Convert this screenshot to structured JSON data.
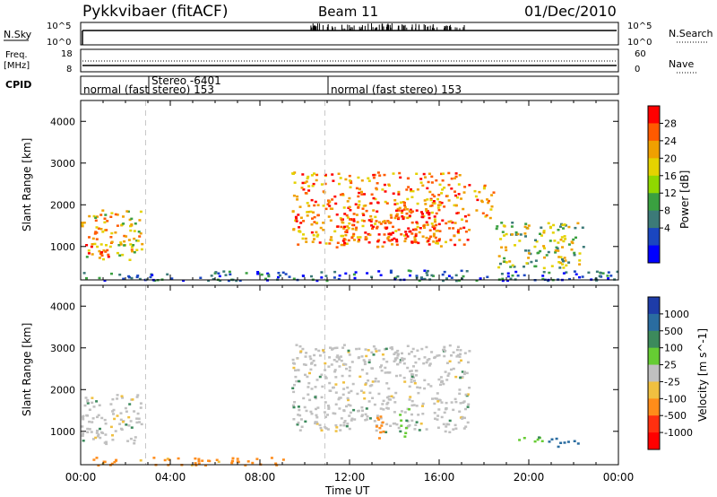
{
  "header": {
    "station": "Pykkvibaer (fitACF)",
    "beam": "Beam 11",
    "date": "01/Dec/2010"
  },
  "panels": {
    "nsky": {
      "label": "N.Sky",
      "ticks_left": [
        "10^5",
        "10^0"
      ],
      "ticks_right": [
        "10^5",
        "10^0"
      ],
      "right_label": "N.Search"
    },
    "freq": {
      "label_line1": "Freq.",
      "label_line2": "[MHz]",
      "ticks_left": [
        "18",
        "8"
      ],
      "ticks_right": [
        "60",
        "0"
      ],
      "right_label": "Nave"
    },
    "cpid": {
      "label": "CPID",
      "segments": [
        {
          "text": "normal (fast stereo) 153",
          "start_hour": 0
        },
        {
          "text": "Stereo -6401",
          "start_hour": 2.9
        },
        {
          "text": "normal (fast stereo) 153",
          "start_hour": 10.9
        }
      ]
    }
  },
  "power_colorbar": {
    "label": "Power [dB]",
    "ticks": [
      "28",
      "24",
      "20",
      "16",
      "12",
      "8",
      "4"
    ],
    "colors": [
      "#ff0000",
      "#ff5a00",
      "#f0a000",
      "#e4d200",
      "#90d800",
      "#3aa040",
      "#3c7a78",
      "#1a46c0",
      "#0000ff"
    ]
  },
  "velocity_colorbar": {
    "label": "Velocity [m s^-1]",
    "ticks": [
      "1000",
      "500",
      "100",
      "25",
      "-25",
      "-100",
      "-500",
      "-1000"
    ],
    "colors": [
      "#1e3ca8",
      "#2a6ca0",
      "#3c8a5c",
      "#66cc33",
      "#c0c0c0",
      "#f0c040",
      "#ff8c1a",
      "#ff3010",
      "#ff0000"
    ]
  },
  "chart_data": [
    {
      "type": "heatmap",
      "name": "power",
      "xlabel": "",
      "ylabel": "Slant Range [km]",
      "xlim": [
        0,
        24
      ],
      "ylim": [
        200,
        4500
      ],
      "yticks": [
        1000,
        2000,
        3000,
        4000
      ],
      "xticks_hours": [
        0,
        4,
        8,
        12,
        16,
        20,
        24
      ],
      "vertical_dashed_hours": [
        2.9,
        10.9
      ],
      "echo_regions": [
        {
          "t0": 0.0,
          "t1": 2.7,
          "r0": 700,
          "r1": 1900,
          "level_db": 20
        },
        {
          "t0": 0.2,
          "t1": 1.2,
          "r0": 700,
          "r1": 1100,
          "level_db": 28
        },
        {
          "t0": 9.4,
          "t1": 17.3,
          "r0": 1000,
          "r1": 2800,
          "level_db": 24
        },
        {
          "t0": 11.5,
          "t1": 16.0,
          "r0": 1100,
          "r1": 1900,
          "level_db": 28
        },
        {
          "t0": 17.5,
          "t1": 18.4,
          "r0": 1700,
          "r1": 2500,
          "level_db": 24
        },
        {
          "t0": 18.5,
          "t1": 22.4,
          "r0": 500,
          "r1": 1600,
          "level_db": 16
        },
        {
          "t0": 0.0,
          "t1": 24.0,
          "r0": 200,
          "r1": 450,
          "level_db": 8
        }
      ]
    },
    {
      "type": "heatmap",
      "name": "velocity",
      "xlabel": "Time UT",
      "ylabel": "Slant Range [km]",
      "xlim": [
        0,
        24
      ],
      "ylim": [
        200,
        4500
      ],
      "yticks": [
        1000,
        2000,
        3000,
        4000
      ],
      "xticks": [
        "00:00",
        "04:00",
        "08:00",
        "12:00",
        "16:00",
        "20:00",
        "00:00"
      ],
      "vertical_dashed_hours": [
        2.9,
        10.9
      ],
      "echo_regions": [
        {
          "t0": 0.0,
          "t1": 2.7,
          "r0": 700,
          "r1": 1900,
          "velocity": 0
        },
        {
          "t0": 9.4,
          "t1": 17.3,
          "r0": 1000,
          "r1": 3100,
          "velocity": 0
        },
        {
          "t0": 13.1,
          "t1": 13.5,
          "r0": 800,
          "r1": 1700,
          "velocity": -100
        },
        {
          "t0": 14.2,
          "t1": 14.6,
          "r0": 900,
          "r1": 1600,
          "velocity": 100
        },
        {
          "t0": 19.5,
          "t1": 20.5,
          "r0": 700,
          "r1": 900,
          "velocity": 100
        },
        {
          "t0": 20.5,
          "t1": 22.2,
          "r0": 650,
          "r1": 850,
          "velocity": 500
        },
        {
          "t0": 0.5,
          "t1": 9.0,
          "r0": 200,
          "r1": 400,
          "velocity": -100
        }
      ]
    }
  ]
}
